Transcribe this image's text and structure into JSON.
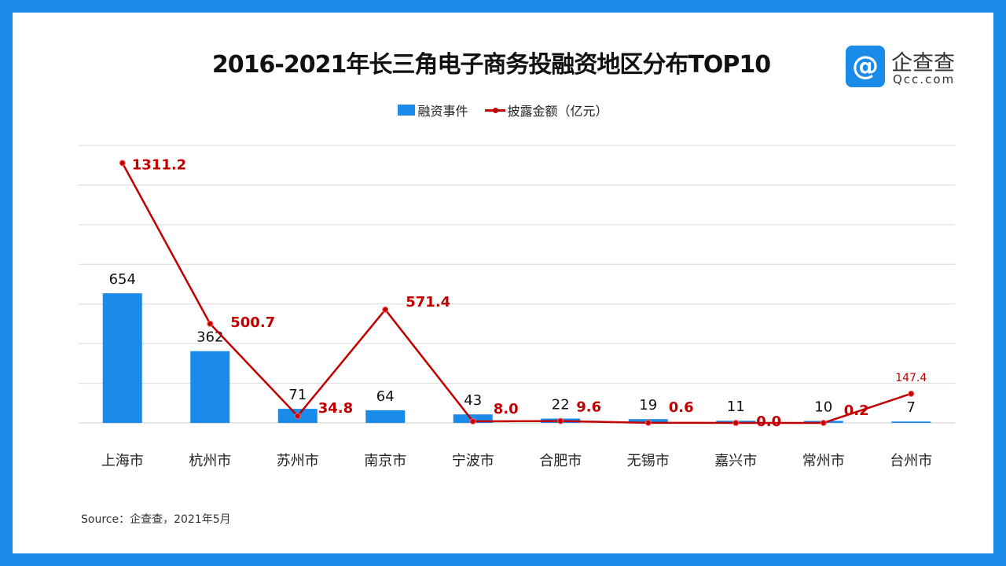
{
  "chart_data": {
    "type": "bar+line",
    "title": "2016-2021年长三角电子商务投融资地区分布TOP10",
    "categories": [
      "上海市",
      "杭州市",
      "苏州市",
      "南京市",
      "宁波市",
      "合肥市",
      "无锡市",
      "嘉兴市",
      "常州市",
      "台州市"
    ],
    "series": [
      {
        "name": "融资事件",
        "type": "bar",
        "color": "#1a8be8",
        "values": [
          654,
          362,
          71,
          64,
          43,
          22,
          19,
          11,
          10,
          7
        ]
      },
      {
        "name": "披露金额（亿元）",
        "type": "line",
        "color": "#c00000",
        "values": [
          1311.2,
          500.7,
          34.8,
          571.4,
          8.0,
          9.6,
          0.6,
          0.0,
          0.2,
          147.4
        ],
        "labels": [
          "1311.2",
          "500.7",
          "34.8",
          "571.4",
          "8.0",
          "9.6",
          "0.6",
          "0.0",
          "0.2",
          "147.4"
        ]
      }
    ],
    "ylim": [
      0,
      1400
    ],
    "grid": true,
    "legend": "top-center",
    "xlabel": "",
    "ylabel": ""
  },
  "logo": {
    "cn": "企查查",
    "en": "Qcc.com"
  },
  "source": "Source：企查查，2021年5月"
}
